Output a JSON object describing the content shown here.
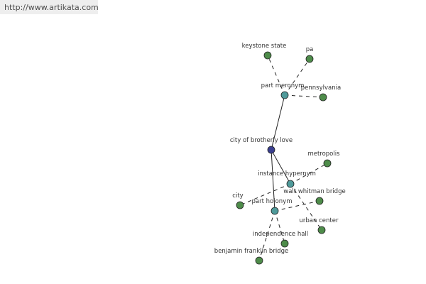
{
  "header": {
    "url": "http://www.artikata.com"
  },
  "nodes": [
    {
      "label": "keystone state"
    },
    {
      "label": "pa"
    },
    {
      "label": "part meronym"
    },
    {
      "label": "pennsylvania"
    },
    {
      "label": "city of brotherly love"
    },
    {
      "label": "metropolis"
    },
    {
      "label": "instance hypernym"
    },
    {
      "label": "city"
    },
    {
      "label": "walt whitman bridge"
    },
    {
      "label": "part holonym"
    },
    {
      "label": "urban center"
    },
    {
      "label": "independence hall"
    },
    {
      "label": "benjamin franklin bridge"
    }
  ]
}
